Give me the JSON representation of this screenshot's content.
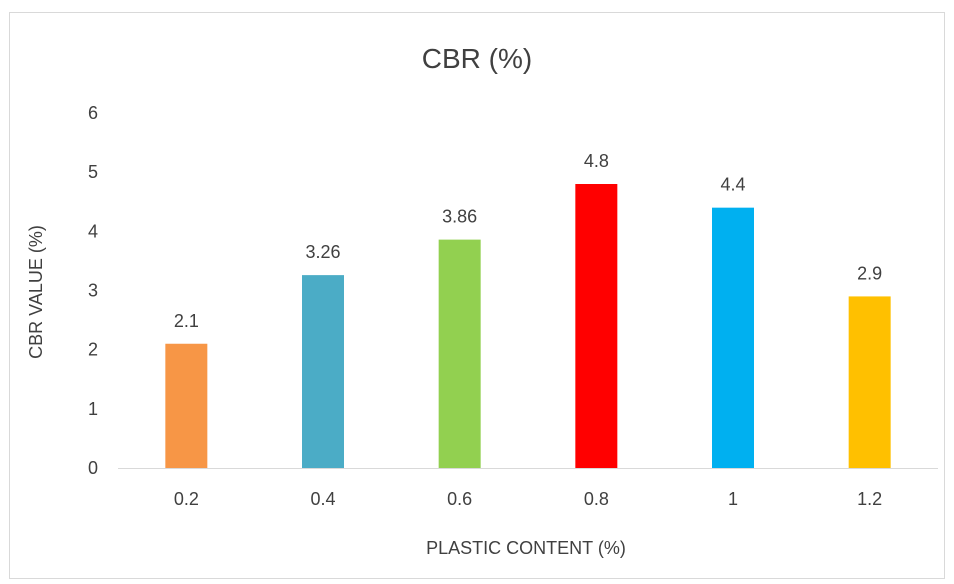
{
  "chart_data": {
    "type": "bar",
    "title": "CBR (%)",
    "xlabel": "PLASTIC CONTENT (%)",
    "ylabel": "CBR  VALUE (%)",
    "categories": [
      "0.2",
      "0.4",
      "0.6",
      "0.8",
      "1",
      "1.2"
    ],
    "values": [
      2.1,
      3.26,
      3.86,
      4.8,
      4.4,
      2.9
    ],
    "value_labels": [
      "2.1",
      "3.26",
      "3.86",
      "4.8",
      "4.4",
      "2.9"
    ],
    "colors": [
      "#F79646",
      "#4BACC6",
      "#92D050",
      "#FF0000",
      "#00B0F0",
      "#FFC000"
    ],
    "ylim": [
      0,
      6
    ],
    "yticks": [
      "0",
      "1",
      "2",
      "3",
      "4",
      "5",
      "6"
    ],
    "grid": false,
    "legend": "none"
  }
}
